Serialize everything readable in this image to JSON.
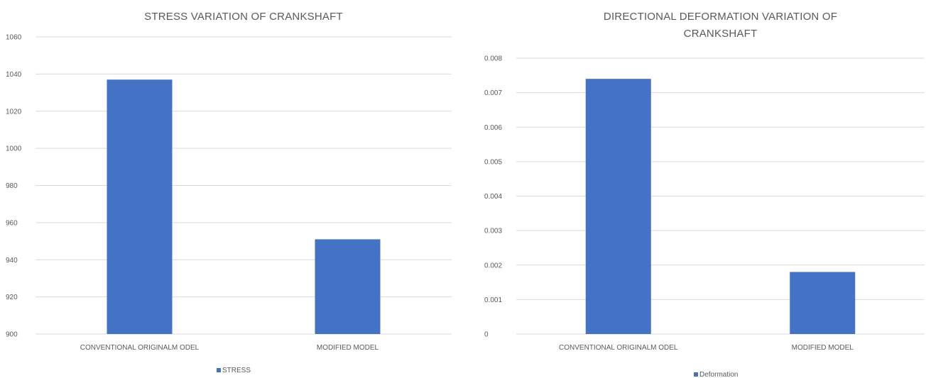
{
  "chart_data": [
    {
      "type": "bar",
      "title": "STRESS VARIATION OF CRANKSHAFT",
      "categories": [
        "CONVENTIONAL ORIGINALM ODEL",
        "MODIFIED MODEL"
      ],
      "series": [
        {
          "name": "STRESS",
          "values": [
            1037,
            951
          ]
        }
      ],
      "yticks": [
        "900",
        "920",
        "940",
        "960",
        "980",
        "1000",
        "1020",
        "1040",
        "1060"
      ],
      "ylim": [
        900,
        1060
      ],
      "grid": true,
      "legend": "bottom",
      "bar_color": "#4472c4"
    },
    {
      "type": "bar",
      "title": "DIRECTIONAL DEFORMATION VARIATION OF CRANKSHAFT",
      "categories": [
        "CONVENTIONAL ORIGINALM ODEL",
        "MODIFIED MODEL"
      ],
      "series": [
        {
          "name": "Deformation",
          "values": [
            0.0074,
            0.0018
          ]
        }
      ],
      "yticks": [
        "0",
        "0.001",
        "0.002",
        "0.003",
        "0.004",
        "0.005",
        "0.006",
        "0.007",
        "0.008"
      ],
      "ylim": [
        0,
        0.008
      ],
      "grid": true,
      "legend": "bottom",
      "bar_color": "#4472c4"
    }
  ]
}
